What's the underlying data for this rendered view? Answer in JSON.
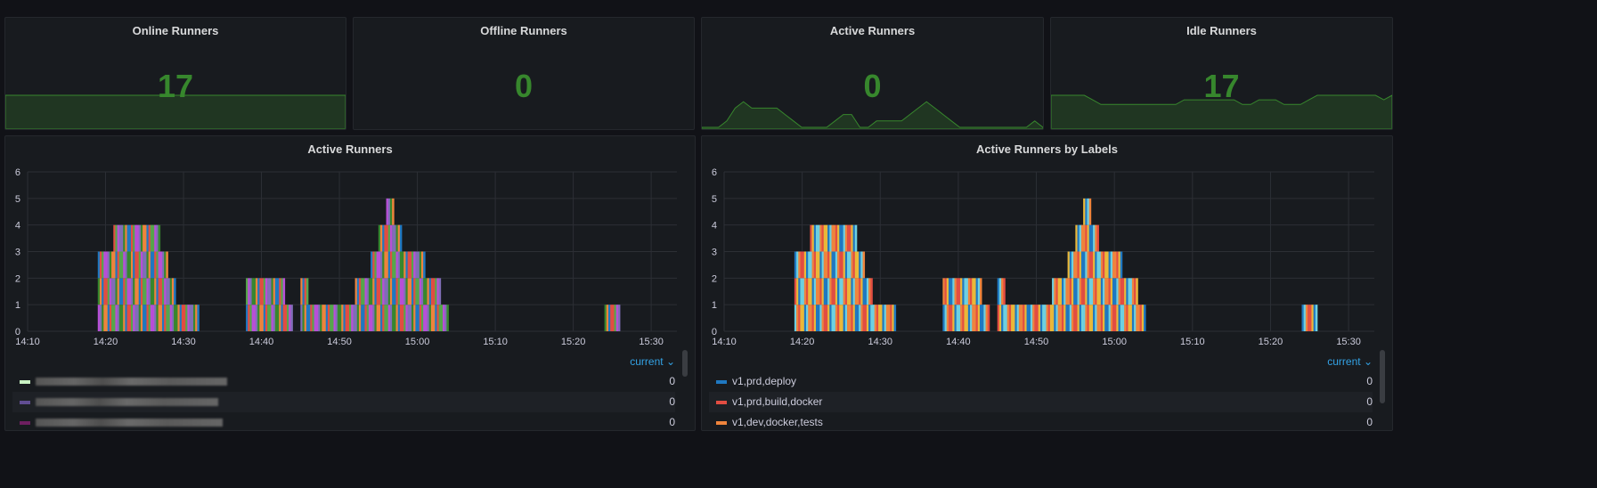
{
  "stats": [
    {
      "title": "Online Runners",
      "value": "17",
      "sparkline": [
        17,
        17,
        17,
        17,
        17,
        17,
        17,
        17,
        17,
        17,
        17,
        17,
        17,
        17,
        17,
        17,
        17,
        17,
        17,
        17
      ]
    },
    {
      "title": "Offline Runners",
      "value": "0",
      "sparkline": []
    },
    {
      "title": "Active Runners",
      "value": "0",
      "sparkline": [
        0,
        0,
        0,
        1,
        3,
        4,
        3,
        3,
        3,
        3,
        2,
        1,
        0,
        0,
        0,
        0,
        1,
        2,
        2,
        0,
        0,
        1,
        1,
        1,
        1,
        2,
        3,
        4,
        3,
        2,
        1,
        0,
        0,
        0,
        0,
        0,
        0,
        0,
        0,
        0,
        1,
        0
      ]
    },
    {
      "title": "Idle Runners",
      "value": "17",
      "sparkline": [
        17,
        17,
        17,
        17,
        17,
        16,
        15,
        15,
        15,
        15,
        15,
        15,
        15,
        15,
        15,
        15,
        16,
        16,
        16,
        16,
        16,
        16,
        16,
        15,
        15,
        16,
        16,
        16,
        15,
        15,
        15,
        16,
        17,
        17,
        17,
        17,
        17,
        17,
        17,
        17,
        16,
        17
      ]
    }
  ],
  "stat_color": "#37872d",
  "chart_data": [
    {
      "type": "bar",
      "title": "Active Runners",
      "ylim": [
        0,
        6
      ],
      "yticks": [
        "0",
        "1",
        "2",
        "3",
        "4",
        "5",
        "6"
      ],
      "xticks": [
        "14:10",
        "14:20",
        "14:30",
        "14:40",
        "14:50",
        "15:00",
        "15:10",
        "15:20",
        "15:30"
      ],
      "x": [
        "14:19",
        "14:20",
        "14:21",
        "14:22",
        "14:23",
        "14:24",
        "14:25",
        "14:26",
        "14:27",
        "14:28",
        "14:29",
        "14:30",
        "14:31",
        "14:38",
        "14:39",
        "14:40",
        "14:41",
        "14:42",
        "14:43",
        "14:45",
        "14:46",
        "14:47",
        "14:48",
        "14:49",
        "14:50",
        "14:51",
        "14:52",
        "14:53",
        "14:54",
        "14:55",
        "14:56",
        "14:57",
        "14:58",
        "14:59",
        "15:00",
        "15:01",
        "15:02",
        "15:03",
        "15:24",
        "15:25"
      ],
      "totals": [
        3,
        3,
        4,
        4,
        4,
        4,
        4,
        4,
        3,
        2,
        1,
        1,
        1,
        2,
        2,
        2,
        2,
        2,
        1,
        2,
        1,
        1,
        1,
        1,
        1,
        1,
        2,
        2,
        3,
        4,
        5,
        4,
        3,
        3,
        3,
        2,
        2,
        1,
        1,
        1
      ],
      "series_colors": [
        "#b84fd8",
        "#806eb7",
        "#37872d",
        "#ef843c",
        "#1f78c1",
        "#e24d42",
        "#56a64b"
      ],
      "legend_header": "current",
      "legend": [
        {
          "color": "#c8f2c2",
          "value": "0"
        },
        {
          "color": "#614d93",
          "value": "0"
        },
        {
          "color": "#6e1f60",
          "value": "0"
        }
      ]
    },
    {
      "type": "bar",
      "title": "Active Runners by Labels",
      "ylim": [
        0,
        6
      ],
      "yticks": [
        "0",
        "1",
        "2",
        "3",
        "4",
        "5",
        "6"
      ],
      "xticks": [
        "14:10",
        "14:20",
        "14:30",
        "14:40",
        "14:50",
        "15:00",
        "15:10",
        "15:20",
        "15:30"
      ],
      "x": [
        "14:19",
        "14:20",
        "14:21",
        "14:22",
        "14:23",
        "14:24",
        "14:25",
        "14:26",
        "14:27",
        "14:28",
        "14:29",
        "14:30",
        "14:31",
        "14:38",
        "14:39",
        "14:40",
        "14:41",
        "14:42",
        "14:43",
        "14:45",
        "14:46",
        "14:47",
        "14:48",
        "14:49",
        "14:50",
        "14:51",
        "14:52",
        "14:53",
        "14:54",
        "14:55",
        "14:56",
        "14:57",
        "14:58",
        "14:59",
        "15:00",
        "15:01",
        "15:02",
        "15:03",
        "15:24",
        "15:25"
      ],
      "totals": [
        3,
        3,
        4,
        4,
        4,
        4,
        4,
        4,
        3,
        2,
        1,
        1,
        1,
        2,
        2,
        2,
        2,
        2,
        1,
        2,
        1,
        1,
        1,
        1,
        1,
        1,
        2,
        2,
        3,
        4,
        5,
        4,
        3,
        3,
        3,
        2,
        2,
        1,
        1,
        1
      ],
      "series_colors": [
        "#6ed0e0",
        "#ef843c",
        "#e24d42",
        "#eab839",
        "#1f78c1"
      ],
      "legend_header": "current",
      "legend": [
        {
          "name": "v1,prd,deploy",
          "color": "#1f78c1",
          "value": "0"
        },
        {
          "name": "v1,prd,build,docker",
          "color": "#e24d42",
          "value": "0"
        },
        {
          "name": "v1,dev,docker,tests",
          "color": "#ef843c",
          "value": "0"
        }
      ]
    }
  ]
}
